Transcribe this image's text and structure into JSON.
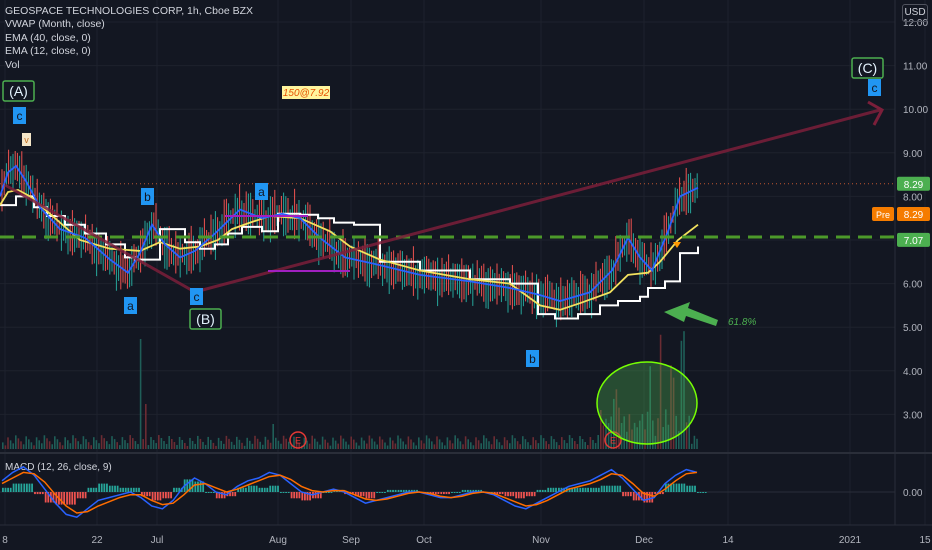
{
  "legend": {
    "title": "GEOSPACE TECHNOLOGIES CORP, 1h, Cboe BZX",
    "line1": "VWAP (Month, close)",
    "line2": "EMA (40, close, 0)",
    "line3": "EMA (12, close, 0)",
    "line4": "Vol"
  },
  "currency_button": "USD",
  "colors": {
    "background": "#131722",
    "grid": "#1e222d",
    "vwap": "#ffffff",
    "ema40": "#f3e25e",
    "ema12": "#2962ff",
    "up": "#26a69a",
    "down": "#ef5350",
    "wave_arrow": "#7b1f3a",
    "support": "#4c9a2a",
    "price_tag": "#4caf50",
    "pre_tag": "#f57c00"
  },
  "chart_data": [
    {
      "type": "line",
      "title": "GEOSPACE TECHNOLOGIES CORP, 1h, Cboe BZX",
      "x_ticks": [
        "8",
        "22",
        "Jul",
        "Aug",
        "Sep",
        "Oct",
        "Nov",
        "Dec",
        "14",
        "2021",
        "15"
      ],
      "y_ticks": [
        "12.00",
        "11.00",
        "10.00",
        "9.00",
        "8.00",
        "7.00",
        "6.00",
        "5.00",
        "4.00",
        "3.00"
      ],
      "ylim": [
        2.6,
        12.4
      ],
      "log_scale": false,
      "grid": true,
      "series": [
        {
          "name": "VWAP (Month, close)",
          "x": [
            0,
            16,
            34,
            47,
            65,
            85,
            106,
            125,
            135,
            160,
            185,
            200,
            215,
            228,
            242,
            262,
            278,
            300,
            318,
            334,
            354,
            380,
            420,
            470,
            510,
            538,
            555,
            578,
            600,
            618,
            640,
            648,
            665,
            680,
            698
          ],
          "y": [
            7.8,
            8.0,
            7.75,
            7.55,
            7.35,
            7.15,
            6.9,
            6.6,
            6.55,
            7.25,
            6.95,
            6.8,
            6.9,
            7.15,
            7.3,
            7.2,
            7.6,
            7.58,
            7.5,
            7.4,
            7.35,
            6.5,
            6.3,
            6.1,
            6.0,
            5.3,
            5.2,
            5.3,
            5.5,
            5.6,
            5.7,
            5.9,
            6.05,
            6.7,
            6.85
          ]
        },
        {
          "name": "EMA (40, close, 0)",
          "x": [
            0,
            8,
            18,
            30,
            50,
            80,
            110,
            140,
            160,
            180,
            200,
            218,
            232,
            250,
            270,
            300,
            330,
            350,
            380,
            420,
            470,
            510,
            540,
            560,
            580,
            610,
            628,
            648,
            660,
            678,
            698
          ],
          "y": [
            7.8,
            8.1,
            8.15,
            8.0,
            7.6,
            7.0,
            6.8,
            6.75,
            6.95,
            6.8,
            6.85,
            7.0,
            7.25,
            7.4,
            7.55,
            7.5,
            7.2,
            6.85,
            6.55,
            6.3,
            6.1,
            6.0,
            5.5,
            5.4,
            5.55,
            5.8,
            6.2,
            6.25,
            6.5,
            7.0,
            7.35
          ]
        },
        {
          "name": "EMA (12, close, 0)",
          "x": [
            0,
            8,
            16,
            26,
            40,
            60,
            85,
            110,
            128,
            140,
            152,
            165,
            180,
            195,
            215,
            240,
            262,
            282,
            300,
            320,
            345,
            375,
            420,
            470,
            510,
            538,
            560,
            590,
            612,
            628,
            640,
            652,
            668,
            680,
            698
          ],
          "y": [
            8.0,
            8.55,
            8.7,
            8.35,
            7.75,
            7.25,
            7.05,
            6.55,
            6.25,
            6.7,
            7.35,
            6.9,
            6.6,
            6.75,
            7.15,
            7.7,
            7.5,
            7.6,
            7.5,
            7.05,
            6.6,
            6.45,
            6.2,
            6.05,
            5.9,
            5.75,
            5.6,
            5.8,
            6.3,
            7.05,
            6.6,
            6.3,
            7.2,
            8.0,
            8.2
          ]
        }
      ],
      "last_price": "8.29",
      "pre_label": "Pre",
      "pre_price": "8.29",
      "support_level": "7.07",
      "annotations": {
        "wave_A": "(A)",
        "wave_B": "(B)",
        "wave_C": "(C)",
        "label_a": "a",
        "label_b": "b",
        "label_c": "c",
        "label_v": "v",
        "label_e": "E",
        "note_price": "150@7.92",
        "fib": "61.8%"
      }
    },
    {
      "type": "line",
      "title": "MACD (12, 26, close, 9)",
      "y_ticks": [
        "0.00"
      ],
      "series": [
        {
          "name": "MACD",
          "values": [
            0.4,
            0.7,
            0.9,
            0.6,
            0.1,
            -0.4,
            -0.8,
            -0.9,
            -0.6,
            -0.3,
            -0.2,
            -0.1,
            0.0,
            -0.2,
            -0.5,
            -0.6,
            -0.3,
            0.2,
            0.5,
            0.3,
            0.0,
            -0.1,
            0.2,
            0.4,
            0.5,
            0.7,
            0.6,
            0.3,
            0.0,
            -0.1,
            0.0,
            0.1,
            0.0,
            -0.2,
            -0.4,
            -0.3,
            -0.2,
            -0.1,
            0.0,
            0.0,
            -0.1,
            -0.2,
            -0.2,
            -0.1,
            0.0,
            0.0,
            -0.1,
            -0.3,
            -0.5,
            -0.6,
            -0.4,
            -0.2,
            0.0,
            0.2,
            0.3,
            0.4,
            0.6,
            0.8,
            0.5,
            0.1,
            -0.3,
            -0.2,
            0.3,
            0.6,
            0.8,
            0.7
          ]
        },
        {
          "name": "Signal",
          "values": [
            0.3,
            0.5,
            0.7,
            0.65,
            0.35,
            -0.1,
            -0.5,
            -0.75,
            -0.7,
            -0.5,
            -0.35,
            -0.2,
            -0.1,
            -0.1,
            -0.3,
            -0.45,
            -0.4,
            -0.1,
            0.25,
            0.3,
            0.15,
            0.0,
            0.1,
            0.25,
            0.4,
            0.55,
            0.6,
            0.45,
            0.2,
            0.05,
            0.0,
            0.05,
            0.05,
            -0.1,
            -0.25,
            -0.3,
            -0.25,
            -0.15,
            -0.05,
            0.0,
            -0.05,
            -0.15,
            -0.2,
            -0.15,
            -0.05,
            0.0,
            -0.05,
            -0.2,
            -0.35,
            -0.5,
            -0.45,
            -0.3,
            -0.1,
            0.1,
            0.2,
            0.3,
            0.45,
            0.65,
            0.6,
            0.3,
            -0.05,
            -0.15,
            0.1,
            0.4,
            0.65,
            0.7
          ]
        }
      ]
    }
  ]
}
